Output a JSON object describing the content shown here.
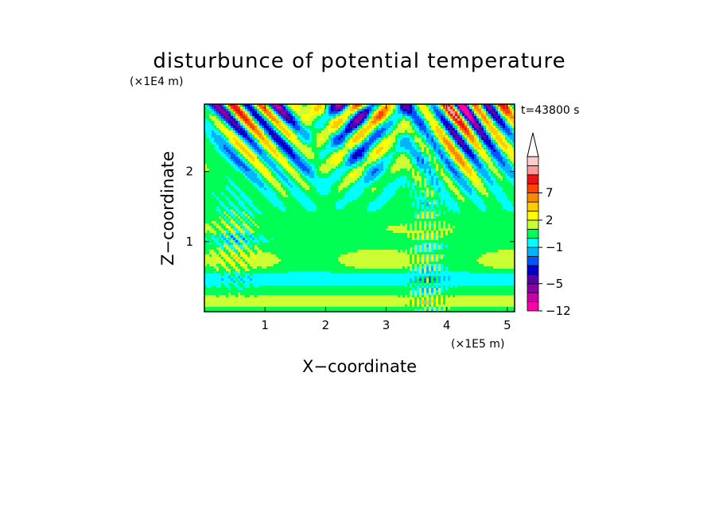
{
  "chart_data": {
    "type": "heatmap",
    "title": "disturbunce of potential temperature",
    "xlabel": "X−coordinate",
    "ylabel": "Z−coordinate",
    "x_unit": "(×1E5 m)",
    "y_unit": "(×1E4 m)",
    "time_label": "t=43800 s",
    "x_ticks": [
      "1",
      "2",
      "3",
      "4",
      "5"
    ],
    "y_ticks": [
      "1",
      "2"
    ],
    "xlim": [
      0,
      5.12
    ],
    "ylim": [
      0,
      2.96
    ],
    "colorbar": {
      "tick_labels": [
        "7",
        "2",
        "−1",
        "−5",
        "−12"
      ],
      "levels": [
        "−12",
        "−9",
        "−7",
        "−5",
        "−4",
        "−3",
        "−2",
        "−1",
        "0",
        "1",
        "2",
        "3",
        "5",
        "7",
        "9",
        "12"
      ],
      "colors": [
        "#ff00aa",
        "#cc00aa",
        "#8800aa",
        "#5500aa",
        "#0000cc",
        "#0055ff",
        "#00b4ff",
        "#00ffff",
        "#00ff55",
        "#ccff33",
        "#ffff00",
        "#ffcc00",
        "#ff8800",
        "#ff4400",
        "#ee1111",
        "#ff9999",
        "#ffcccc"
      ],
      "extend": "max"
    }
  }
}
